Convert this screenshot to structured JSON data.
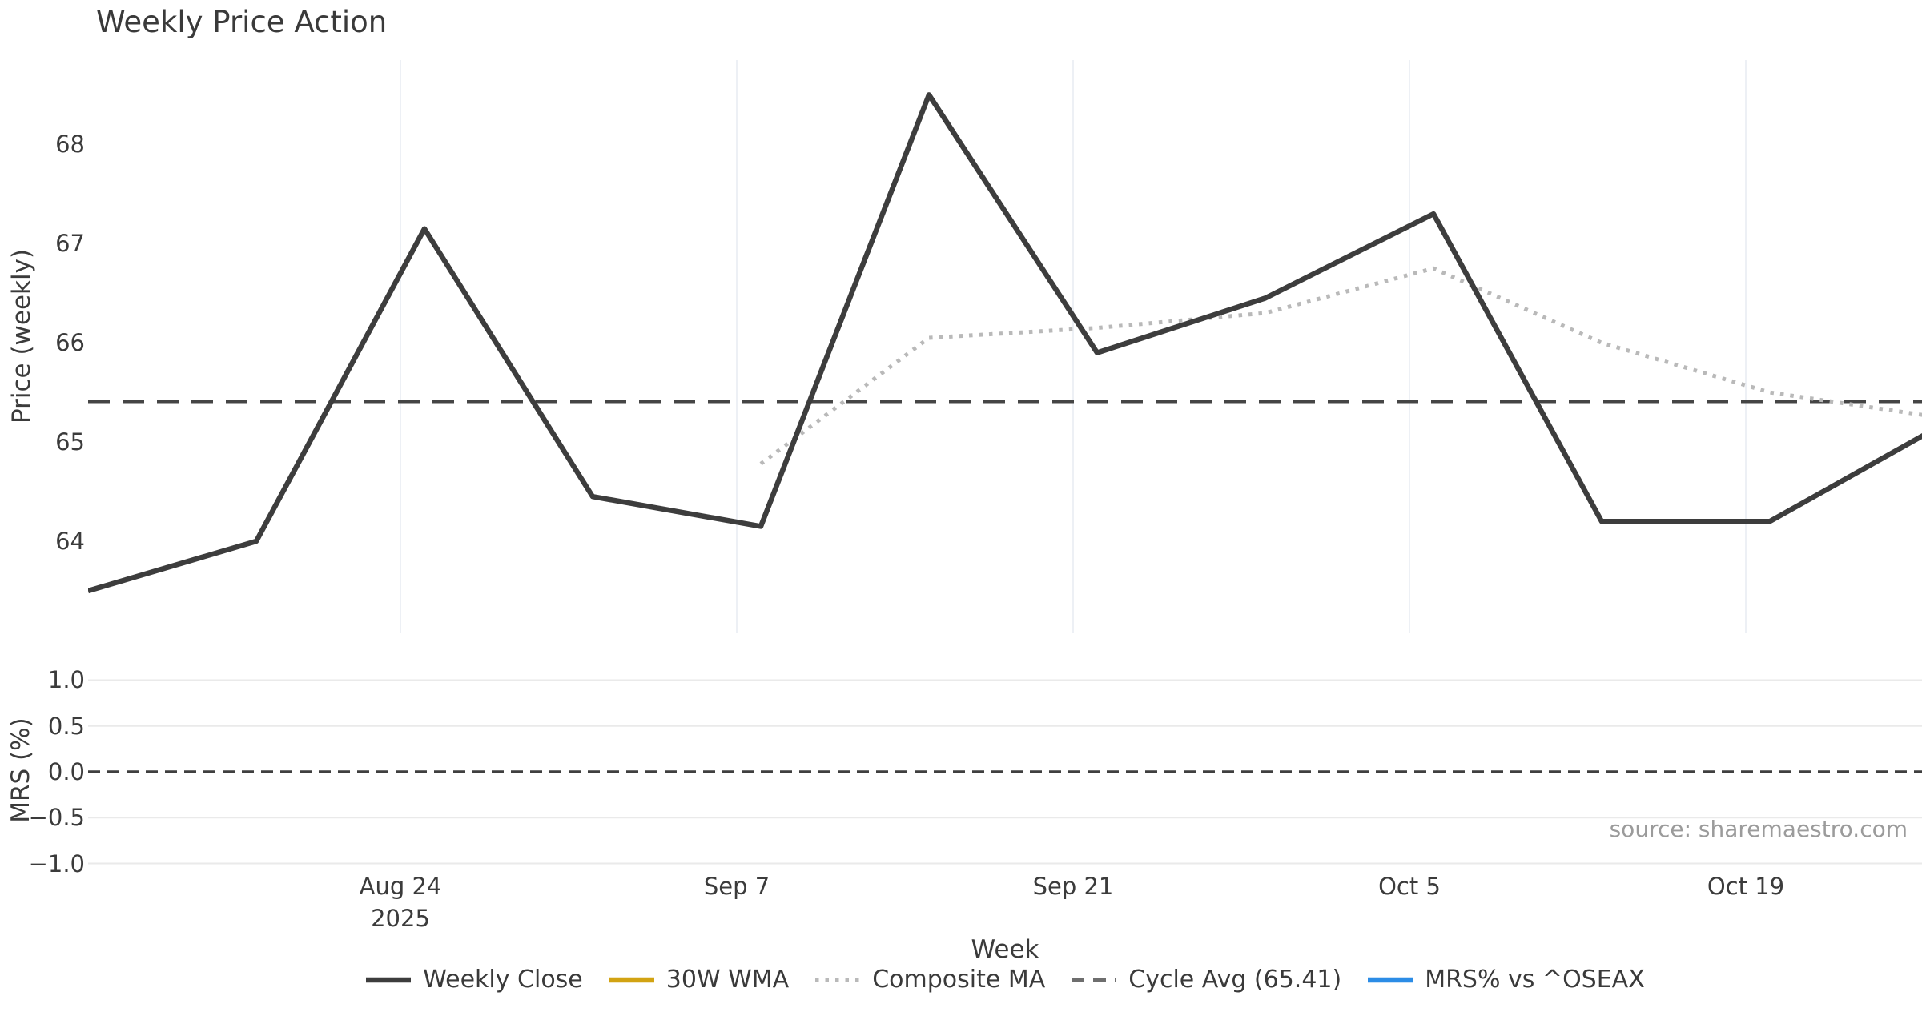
{
  "page": {
    "title": "Weekly Price Action",
    "xlabel": "Week",
    "source_note": "source: sharemaestro.com"
  },
  "price_panel": {
    "ylabel": "Price (weekly)"
  },
  "mrs_panel": {
    "ylabel": "MRS (%)"
  },
  "legend": [
    {
      "label": "Weekly Close",
      "color": "#3d3d3d",
      "style": "solid"
    },
    {
      "label": "30W WMA",
      "color": "#d2a312",
      "style": "solid"
    },
    {
      "label": "Composite MA",
      "color": "#b9b9b9",
      "style": "dotted"
    },
    {
      "label": "Cycle Avg (65.41)",
      "color": "#6e6e6e",
      "style": "dashed"
    },
    {
      "label": "MRS% vs ^OSEAX",
      "color": "#2b8ce6",
      "style": "solid"
    }
  ],
  "chart_data": [
    {
      "type": "line",
      "title": "Weekly Price Action",
      "xlabel": "Week",
      "ylabel": "Price (weekly)",
      "x_dates": [
        "Aug 11",
        "Aug 18",
        "Aug 25",
        "Sep 1",
        "Sep 8",
        "Sep 15",
        "Sep 22",
        "Sep 29",
        "Oct 6",
        "Oct 13",
        "Oct 20",
        "Oct 27"
      ],
      "x_days": [
        0,
        7,
        14,
        21,
        28,
        35,
        42,
        49,
        56,
        63,
        70,
        77
      ],
      "series": [
        {
          "name": "Weekly Close",
          "color": "#3d3d3d",
          "style": "solid",
          "values": [
            63.5,
            64.0,
            67.15,
            64.45,
            64.15,
            68.5,
            65.9,
            66.45,
            67.3,
            64.2,
            64.2,
            65.15
          ]
        },
        {
          "name": "30W WMA",
          "color": "#d2a312",
          "style": "solid",
          "values": []
        },
        {
          "name": "Composite MA",
          "color": "#b9b9b9",
          "style": "dotted",
          "values": [
            null,
            null,
            null,
            null,
            64.78,
            66.05,
            66.15,
            66.3,
            66.75,
            66.0,
            65.5,
            65.25
          ]
        },
        {
          "name": "Cycle Avg (65.41)",
          "color": "#454545",
          "style": "dashed",
          "constant": 65.41
        }
      ],
      "yticks": [
        64,
        65,
        66,
        67,
        68
      ],
      "ylim": [
        63.08,
        68.85
      ],
      "xticks": [
        {
          "label": "Aug 24",
          "sublabel": "2025",
          "day": 13
        },
        {
          "label": "Sep 7",
          "day": 27
        },
        {
          "label": "Sep 21",
          "day": 41
        },
        {
          "label": "Oct 5",
          "day": 55
        },
        {
          "label": "Oct 19",
          "day": 69
        }
      ],
      "grid": "vertical",
      "legend_position": "bottom"
    },
    {
      "type": "line",
      "ylabel": "MRS (%)",
      "series": [
        {
          "name": "MRS% vs ^OSEAX",
          "color": "#2b8ce6",
          "style": "solid",
          "values": []
        },
        {
          "name": "Zero line",
          "color": "#3f3f3f",
          "style": "dashed",
          "constant": 0.0
        }
      ],
      "yticks": [
        1.0,
        0.5,
        0.0,
        -0.5,
        -1.0
      ],
      "ylim": [
        -1.1,
        1.17
      ],
      "grid": "horizontal"
    }
  ]
}
